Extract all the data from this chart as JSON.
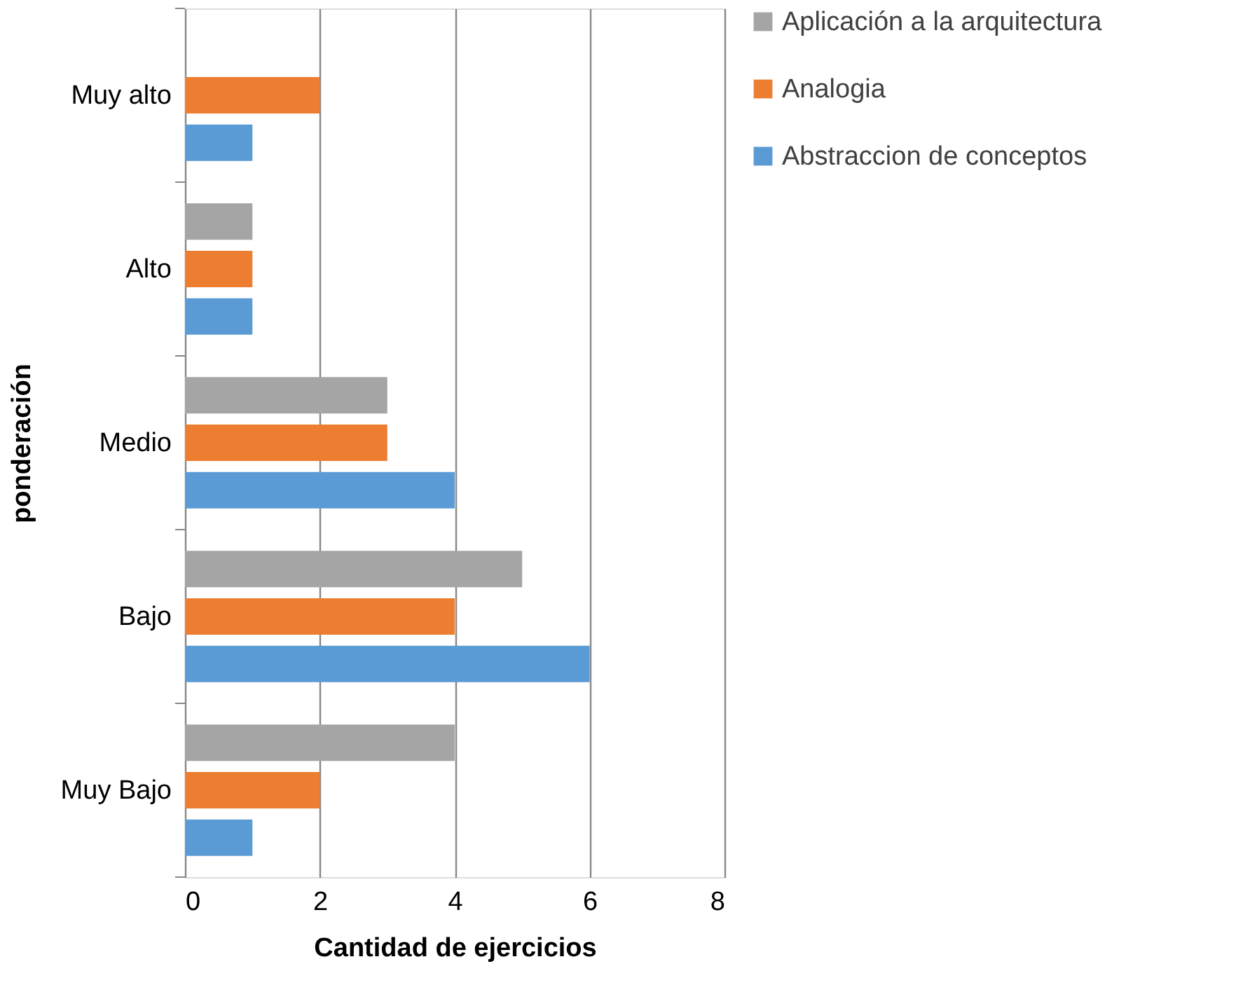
{
  "chart_data": {
    "type": "bar",
    "orientation": "horizontal",
    "xlabel": "Cantidad de ejercicios",
    "ylabel": "ponderación",
    "categories": [
      "Muy alto",
      "Alto",
      "Medio",
      "Bajo",
      "Muy Bajo"
    ],
    "series": [
      {
        "name": "Aplicación a la arquitectura",
        "color": "#a5a5a5",
        "values": [
          0,
          1,
          3,
          5,
          4
        ]
      },
      {
        "name": "Analogia",
        "color": "#ed7d31",
        "values": [
          2,
          1,
          3,
          4,
          2
        ]
      },
      {
        "name": "Abstraccion de conceptos",
        "color": "#5b9bd5",
        "values": [
          1,
          1,
          4,
          6,
          1
        ]
      }
    ],
    "xlim": [
      0,
      8
    ],
    "xticks": [
      0,
      2,
      4,
      6,
      8
    ],
    "grid": "x",
    "legend": "right"
  }
}
